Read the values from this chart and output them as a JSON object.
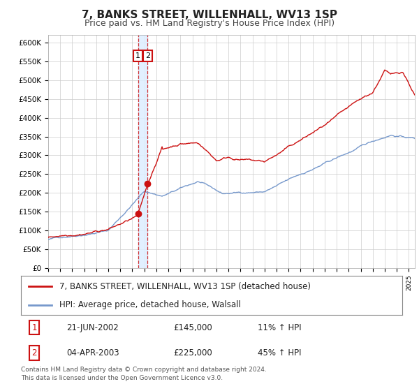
{
  "title": "7, BANKS STREET, WILLENHALL, WV13 1SP",
  "subtitle": "Price paid vs. HM Land Registry's House Price Index (HPI)",
  "ylim": [
    0,
    620000
  ],
  "yticks": [
    0,
    50000,
    100000,
    150000,
    200000,
    250000,
    300000,
    350000,
    400000,
    450000,
    500000,
    550000,
    600000
  ],
  "ytick_labels": [
    "£0",
    "£50K",
    "£100K",
    "£150K",
    "£200K",
    "£250K",
    "£300K",
    "£350K",
    "£400K",
    "£450K",
    "£500K",
    "£550K",
    "£600K"
  ],
  "hpi_color": "#7799cc",
  "price_color": "#cc1111",
  "marker_color": "#cc1111",
  "vline_color": "#cc1111",
  "vshade_color": "#ddeeff",
  "background_color": "#ffffff",
  "grid_color": "#cccccc",
  "title_fontsize": 11,
  "subtitle_fontsize": 9,
  "tick_fontsize": 7.5,
  "legend_fontsize": 8.5,
  "transaction1_date": 2002.47,
  "transaction1_price": 145000,
  "transaction1_label": "1",
  "transaction1_display": "21-JUN-2002",
  "transaction1_amount": "£145,000",
  "transaction1_hpi": "11% ↑ HPI",
  "transaction2_date": 2003.27,
  "transaction2_price": 225000,
  "transaction2_label": "2",
  "transaction2_display": "04-APR-2003",
  "transaction2_amount": "£225,000",
  "transaction2_hpi": "45% ↑ HPI",
  "legend1_label": "7, BANKS STREET, WILLENHALL, WV13 1SP (detached house)",
  "legend2_label": "HPI: Average price, detached house, Walsall",
  "footer": "Contains HM Land Registry data © Crown copyright and database right 2024.\nThis data is licensed under the Open Government Licence v3.0.",
  "xstart": 1995.0,
  "xend": 2025.5
}
